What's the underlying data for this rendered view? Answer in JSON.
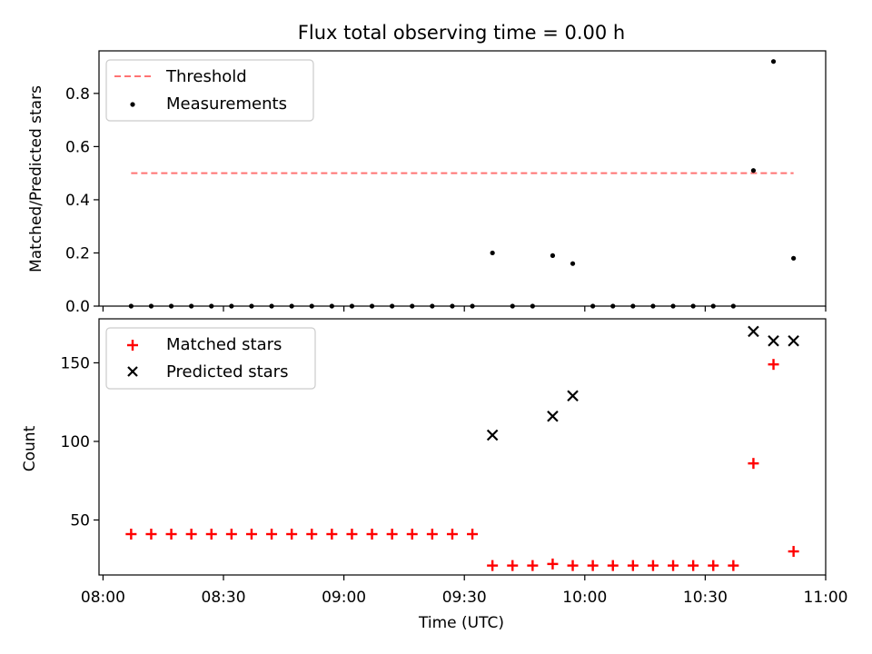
{
  "chart_data": [
    {
      "type": "scatter",
      "title": "Flux total observing time = 0.00 h",
      "ylabel": "Matched/Predicted stars",
      "ylim": [
        0,
        0.96
      ],
      "yticks": [
        0.0,
        0.2,
        0.4,
        0.6,
        0.8
      ],
      "ytick_labels": [
        "0.0",
        "0.2",
        "0.4",
        "0.6",
        "0.8"
      ],
      "grid": false,
      "legend": "top-left",
      "threshold": {
        "name": "Threshold",
        "value": 0.5,
        "x_range": [
          "08:07",
          "10:52"
        ],
        "color": "#ff7373",
        "style": "dashed"
      },
      "series": [
        {
          "name": "Measurements",
          "color": "#000000",
          "marker": "dot",
          "x": [
            "08:07",
            "08:12",
            "08:17",
            "08:22",
            "08:27",
            "08:32",
            "08:37",
            "08:42",
            "08:47",
            "08:52",
            "08:57",
            "09:02",
            "09:07",
            "09:12",
            "09:17",
            "09:22",
            "09:27",
            "09:32",
            "09:37",
            "09:42",
            "09:47",
            "09:52",
            "09:57",
            "10:02",
            "10:07",
            "10:12",
            "10:17",
            "10:22",
            "10:27",
            "10:32",
            "10:37",
            "10:42",
            "10:47",
            "10:52"
          ],
          "y": [
            0,
            0,
            0,
            0,
            0,
            0,
            0,
            0,
            0,
            0,
            0,
            0,
            0,
            0,
            0,
            0,
            0,
            0,
            0.2,
            0,
            0,
            0.19,
            0.16,
            0,
            0,
            0,
            0,
            0,
            0,
            0,
            0,
            0.51,
            0.92,
            0.18
          ]
        }
      ]
    },
    {
      "type": "scatter",
      "xlabel": "Time (UTC)",
      "ylabel": "Count",
      "ylim": [
        15,
        178
      ],
      "yticks": [
        50,
        100,
        150
      ],
      "ytick_labels": [
        "50",
        "100",
        "150"
      ],
      "xlim": [
        "07:59",
        "11:00"
      ],
      "xticks": [
        "08:00",
        "08:30",
        "09:00",
        "09:30",
        "10:00",
        "10:30",
        "11:00"
      ],
      "xtick_labels": [
        "08:00",
        "08:30",
        "09:00",
        "09:30",
        "10:00",
        "10:30",
        "11:00"
      ],
      "grid": false,
      "legend": "top-left",
      "series": [
        {
          "name": "Matched stars",
          "color": "#ff0000",
          "marker": "plus",
          "x": [
            "08:07",
            "08:12",
            "08:17",
            "08:22",
            "08:27",
            "08:32",
            "08:37",
            "08:42",
            "08:47",
            "08:52",
            "08:57",
            "09:02",
            "09:07",
            "09:12",
            "09:17",
            "09:22",
            "09:27",
            "09:32",
            "09:37",
            "09:42",
            "09:47",
            "09:52",
            "09:57",
            "10:02",
            "10:07",
            "10:12",
            "10:17",
            "10:22",
            "10:27",
            "10:32",
            "10:37",
            "10:42",
            "10:47",
            "10:52"
          ],
          "y": [
            41,
            41,
            41,
            41,
            41,
            41,
            41,
            41,
            41,
            41,
            41,
            41,
            41,
            41,
            41,
            41,
            41,
            41,
            21,
            21,
            21,
            22,
            21,
            21,
            21,
            21,
            21,
            21,
            21,
            21,
            21,
            86,
            149,
            30
          ]
        },
        {
          "name": "Predicted stars",
          "color": "#000000",
          "marker": "x",
          "x": [
            "09:37",
            "09:52",
            "09:57",
            "10:42",
            "10:47",
            "10:52"
          ],
          "y": [
            104,
            116,
            129,
            170,
            164,
            164
          ]
        }
      ]
    }
  ]
}
